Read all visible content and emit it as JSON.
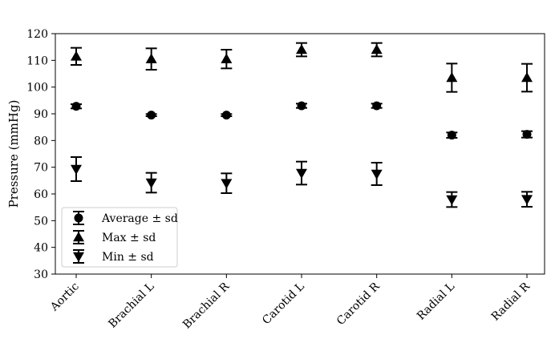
{
  "chart_data": {
    "type": "scatter",
    "title": "",
    "xlabel": "",
    "ylabel": "Pressure (mmHg)",
    "ylim": [
      30,
      120
    ],
    "yticks": [
      30,
      40,
      50,
      60,
      70,
      80,
      90,
      100,
      110,
      120
    ],
    "grid": false,
    "legend_position": "bottom-left",
    "categories": [
      "Aortic",
      "Brachial L",
      "Brachial R",
      "Carotid L",
      "Carotid R",
      "Radial L",
      "Radial R"
    ],
    "series": [
      {
        "name": "Average ± sd",
        "marker": "circle",
        "values": [
          92.8,
          89.5,
          89.5,
          93.0,
          93.0,
          82.0,
          82.3
        ],
        "sd": [
          0.8,
          0.4,
          0.4,
          0.8,
          0.8,
          1.0,
          1.2
        ]
      },
      {
        "name": "Max ± sd",
        "marker": "triangle-up",
        "values": [
          111.5,
          110.5,
          110.5,
          114.0,
          114.0,
          103.5,
          103.5
        ],
        "sd": [
          3.2,
          4.0,
          3.5,
          2.5,
          2.5,
          5.3,
          5.2
        ]
      },
      {
        "name": "Min ± sd",
        "marker": "triangle-down",
        "values": [
          69.3,
          64.2,
          64.0,
          67.8,
          67.5,
          57.9,
          58.0
        ],
        "sd": [
          4.5,
          3.7,
          3.7,
          4.3,
          4.2,
          2.8,
          2.8
        ]
      }
    ],
    "colors": {
      "marker": "#000000",
      "axis": "#000000",
      "legend_border": "#cccccc"
    }
  }
}
